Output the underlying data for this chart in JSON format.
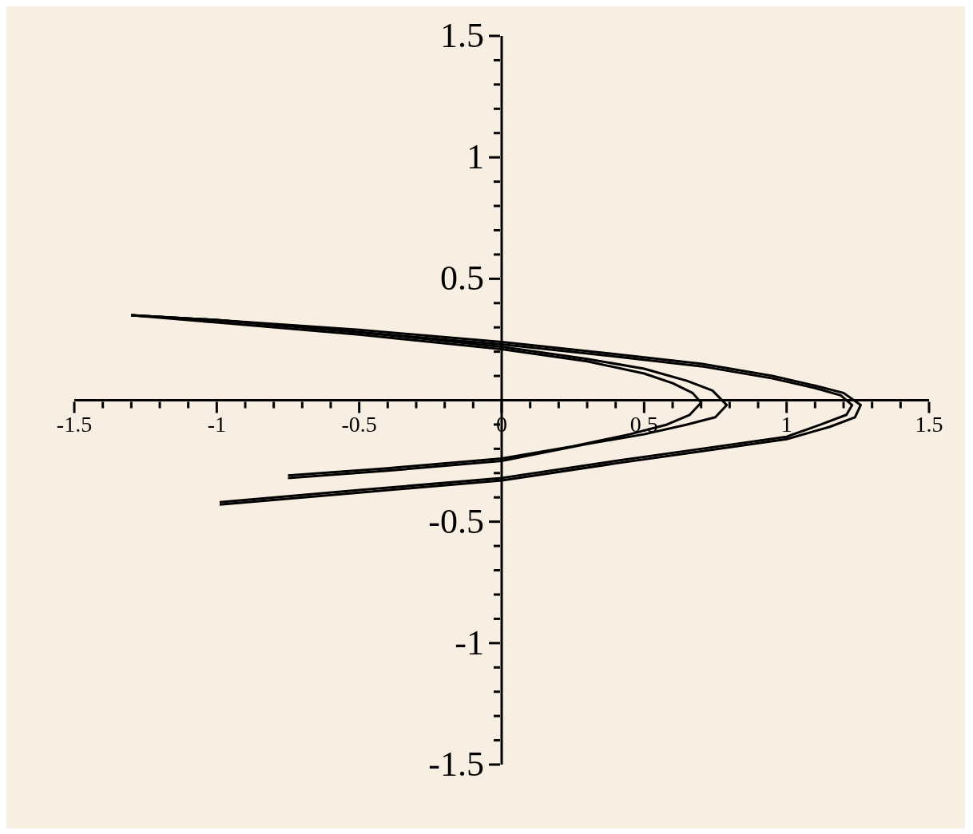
{
  "chart_data": {
    "type": "line",
    "xlim": [
      -1.5,
      1.5
    ],
    "ylim": [
      -1.5,
      1.5
    ],
    "xticks": [
      -1.5,
      {
        "value": -1.4,
        "label": null
      },
      {
        "value": -1.3,
        "label": null
      },
      {
        "value": -1.2,
        "label": null
      },
      {
        "value": -1.1,
        "label": null
      },
      -1,
      {
        "value": -0.9,
        "label": null
      },
      {
        "value": -0.8,
        "label": null
      },
      {
        "value": -0.7,
        "label": null
      },
      {
        "value": -0.6,
        "label": null
      },
      -0.5,
      {
        "value": -0.4,
        "label": null
      },
      {
        "value": -0.3,
        "label": null
      },
      {
        "value": -0.2,
        "label": null
      },
      {
        "value": -0.1,
        "label": null
      },
      0,
      {
        "value": 0.1,
        "label": null
      },
      {
        "value": 0.2,
        "label": null
      },
      {
        "value": 0.3,
        "label": null
      },
      {
        "value": 0.4,
        "label": null
      },
      0.5,
      {
        "value": 0.6,
        "label": null
      },
      {
        "value": 0.7,
        "label": null
      },
      {
        "value": 0.8,
        "label": null
      },
      {
        "value": 0.9,
        "label": null
      },
      1,
      {
        "value": 1.1,
        "label": null
      },
      {
        "value": 1.2,
        "label": null
      },
      {
        "value": 1.3,
        "label": null
      },
      {
        "value": 1.4,
        "label": null
      },
      1.5
    ],
    "yticks": [
      -1.5,
      {
        "value": -1.4,
        "label": null
      },
      {
        "value": -1.3,
        "label": null
      },
      {
        "value": -1.2,
        "label": null
      },
      {
        "value": -1.1,
        "label": null
      },
      -1,
      {
        "value": -0.9,
        "label": null
      },
      {
        "value": -0.8,
        "label": null
      },
      {
        "value": -0.7,
        "label": null
      },
      {
        "value": -0.6,
        "label": null
      },
      -0.5,
      {
        "value": -0.4,
        "label": null
      },
      {
        "value": -0.3,
        "label": null
      },
      {
        "value": -0.2,
        "label": null
      },
      {
        "value": -0.1,
        "label": null
      },
      {
        "value": 0,
        "label": null
      },
      {
        "value": 0.1,
        "label": null
      },
      {
        "value": 0.2,
        "label": null
      },
      {
        "value": 0.3,
        "label": null
      },
      {
        "value": 0.4,
        "label": null
      },
      0.5,
      {
        "value": 0.6,
        "label": null
      },
      {
        "value": 0.7,
        "label": null
      },
      {
        "value": 0.8,
        "label": null
      },
      {
        "value": 0.9,
        "label": null
      },
      1,
      {
        "value": 1.1,
        "label": null
      },
      {
        "value": 1.2,
        "label": null
      },
      {
        "value": 1.3,
        "label": null
      },
      {
        "value": 1.4,
        "label": null
      },
      1.5
    ],
    "grid": false,
    "legend": false,
    "marker": "none",
    "line_style": "solid",
    "series": [
      {
        "color": "#000000",
        "x": [
          -1.3,
          -1.0,
          -0.5,
          0,
          0.4,
          0.7,
          0.95,
          1.1,
          1.2,
          1.26,
          1.24,
          1.15,
          1.0,
          0.7,
          0.4,
          0,
          -0.5,
          -0.99
        ],
        "values": [
          0.35,
          0.33,
          0.29,
          0.24,
          0.19,
          0.15,
          0.1,
          0.06,
          0.03,
          -0.02,
          -0.07,
          -0.11,
          -0.16,
          -0.21,
          -0.26,
          -0.33,
          -0.38,
          -0.43
        ]
      },
      {
        "color": "#000000",
        "x": [
          -1.3,
          -1.0,
          -0.5,
          0,
          0.4,
          0.7,
          0.95,
          1.1,
          1.19,
          1.23,
          1.21,
          1.12,
          1.0,
          0.7,
          0.4,
          0,
          -0.5,
          -0.99
        ],
        "values": [
          0.35,
          0.33,
          0.28,
          0.23,
          0.18,
          0.14,
          0.09,
          0.05,
          0.02,
          -0.02,
          -0.06,
          -0.1,
          -0.15,
          -0.2,
          -0.25,
          -0.32,
          -0.37,
          -0.42
        ]
      },
      {
        "color": "#000000",
        "x": [
          -1.3,
          -1.0,
          -0.5,
          0,
          0.3,
          0.5,
          0.65,
          0.74,
          0.79,
          0.75,
          0.65,
          0.5,
          0.3,
          0,
          -0.4,
          -0.75
        ],
        "values": [
          0.35,
          0.33,
          0.28,
          0.22,
          0.17,
          0.13,
          0.08,
          0.04,
          -0.02,
          -0.07,
          -0.1,
          -0.14,
          -0.18,
          -0.25,
          -0.29,
          -0.32
        ]
      },
      {
        "color": "#000000",
        "x": [
          -1.3,
          -1.0,
          -0.5,
          0,
          0.3,
          0.5,
          0.6,
          0.67,
          0.7,
          0.66,
          0.58,
          0.45,
          0.25,
          0,
          -0.4,
          -0.75
        ],
        "values": [
          0.35,
          0.32,
          0.27,
          0.21,
          0.16,
          0.11,
          0.07,
          0.03,
          -0.01,
          -0.06,
          -0.1,
          -0.14,
          -0.19,
          -0.24,
          -0.28,
          -0.31
        ]
      }
    ]
  }
}
